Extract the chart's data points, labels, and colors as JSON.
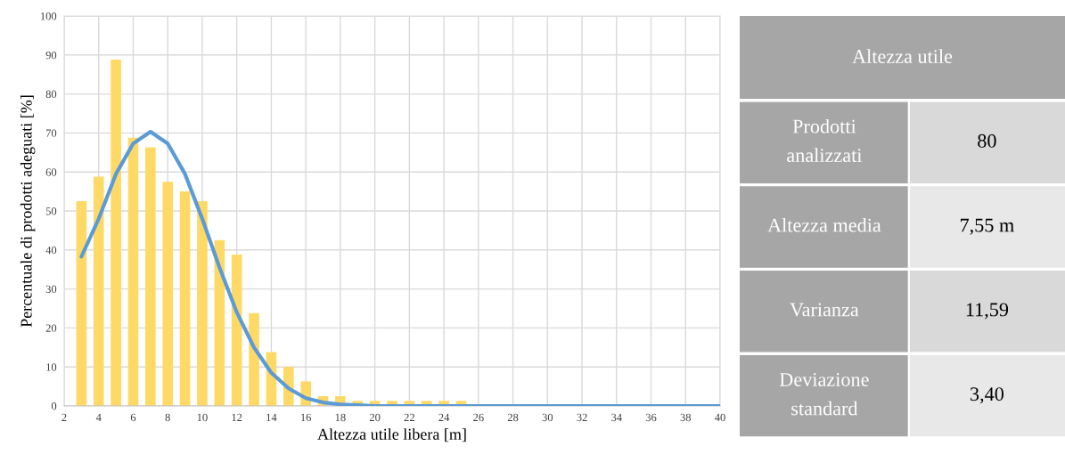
{
  "chart_data": [
    {
      "type": "bar",
      "xlabel": "Altezza utile libera [m]",
      "ylabel": "Percentuale di prodotti adeguati [%]",
      "xlim": [
        2,
        40
      ],
      "xticks": [
        2,
        4,
        6,
        8,
        10,
        12,
        14,
        16,
        18,
        20,
        22,
        24,
        26,
        28,
        30,
        32,
        34,
        36,
        38,
        40
      ],
      "ylim": [
        0,
        100
      ],
      "yticks": [
        0,
        10,
        20,
        30,
        40,
        50,
        60,
        70,
        80,
        90,
        100
      ],
      "grid": true,
      "series": [
        {
          "type": "bar",
          "color": "#ffd966",
          "x": [
            3,
            4,
            5,
            6,
            7,
            8,
            9,
            10,
            11,
            12,
            13,
            14,
            15,
            16,
            17,
            18,
            19,
            20,
            21,
            22,
            23,
            24,
            25
          ],
          "values": [
            52.5,
            58.8,
            88.8,
            68.8,
            66.3,
            57.5,
            55,
            52.5,
            42.5,
            38.8,
            23.8,
            13.8,
            10,
            6.3,
            2.5,
            2.5,
            1.3,
            1.3,
            1.3,
            1.3,
            1.3,
            1.3,
            1.3
          ]
        },
        {
          "type": "line",
          "color": "#5b9bd5",
          "x": [
            3,
            4,
            5,
            6,
            7,
            8,
            9,
            10,
            11,
            12,
            13,
            14,
            15,
            16,
            17,
            18,
            19,
            20,
            25,
            30,
            35,
            40
          ],
          "values": [
            38.3,
            48,
            59.5,
            67.3,
            70.3,
            67.3,
            59.5,
            48,
            35.5,
            24,
            15,
            8.5,
            4.5,
            2,
            0.9,
            0.4,
            0.2,
            0,
            0,
            0,
            0,
            0
          ]
        }
      ]
    },
    {
      "type": "other",
      "title": "Altezza utile",
      "annotations": [
        "Prodotti analizzati",
        "80",
        "Altezza media",
        "7,55 m",
        "Varianza",
        "11,59",
        "Deviazione standard",
        "3,40"
      ]
    }
  ]
}
